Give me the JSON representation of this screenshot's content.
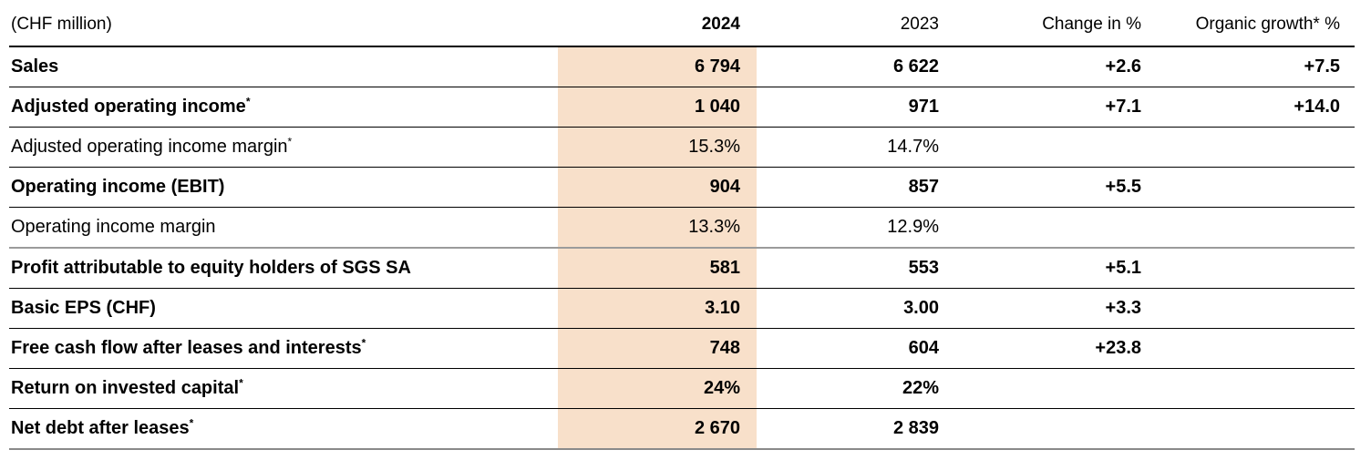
{
  "table": {
    "unit_label": "(CHF million)",
    "columns": {
      "y2024": "2024",
      "y2023": "2023",
      "change": "Change in %",
      "organic": "Organic growth* %"
    },
    "highlight_color": "#F8E0CA",
    "rows": [
      {
        "label": "Sales",
        "sup": "",
        "bold": true,
        "section_break_below": false,
        "values": {
          "y2024": "6 794",
          "y2023": "6 622",
          "change": "+2.6",
          "organic": "+7.5"
        }
      },
      {
        "label": "Adjusted operating income",
        "sup": "*",
        "bold": true,
        "section_break_below": false,
        "values": {
          "y2024": "1 040",
          "y2023": "971",
          "change": "+7.1",
          "organic": "+14.0"
        }
      },
      {
        "label": "Adjusted operating income margin",
        "sup": "*",
        "bold": false,
        "section_break_below": false,
        "values": {
          "y2024": "15.3%",
          "y2023": "14.7%",
          "change": "",
          "organic": ""
        }
      },
      {
        "label": "Operating income (EBIT)",
        "sup": "",
        "bold": true,
        "section_break_below": false,
        "values": {
          "y2024": "904",
          "y2023": "857",
          "change": "+5.5",
          "organic": ""
        }
      },
      {
        "label": "Operating income margin",
        "sup": "",
        "bold": false,
        "section_break_below": true,
        "values": {
          "y2024": "13.3%",
          "y2023": "12.9%",
          "change": "",
          "organic": ""
        }
      },
      {
        "label": "Profit attributable to equity holders of SGS SA",
        "sup": "",
        "bold": true,
        "section_break_below": false,
        "values": {
          "y2024": "581",
          "y2023": "553",
          "change": "+5.1",
          "organic": ""
        }
      },
      {
        "label": "Basic EPS (CHF)",
        "sup": "",
        "bold": true,
        "section_break_below": false,
        "values": {
          "y2024": "3.10",
          "y2023": "3.00",
          "change": "+3.3",
          "organic": ""
        }
      },
      {
        "label": "Free cash flow after leases and interests",
        "sup": "*",
        "bold": true,
        "section_break_below": false,
        "values": {
          "y2024": "748",
          "y2023": "604",
          "change": "+23.8",
          "organic": ""
        }
      },
      {
        "label": "Return on invested capital",
        "sup": "*",
        "bold": true,
        "section_break_below": false,
        "values": {
          "y2024": "24%",
          "y2023": "22%",
          "change": "",
          "organic": ""
        }
      },
      {
        "label": "Net debt after leases",
        "sup": "*",
        "bold": true,
        "section_break_below": false,
        "values": {
          "y2024": "2 670",
          "y2023": "2 839",
          "change": "",
          "organic": ""
        }
      }
    ]
  }
}
